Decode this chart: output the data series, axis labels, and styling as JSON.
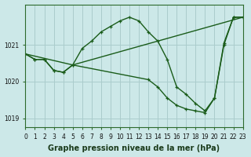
{
  "line1_x": [
    0,
    1,
    2,
    3,
    4,
    5,
    6,
    7,
    8,
    9,
    10,
    11,
    12,
    13,
    14,
    15,
    16,
    17,
    18,
    19,
    20,
    21,
    22,
    23
  ],
  "line1_y": [
    1020.75,
    1020.6,
    1020.6,
    1020.3,
    1020.25,
    1020.45,
    1020.9,
    1021.1,
    1021.35,
    1021.5,
    1021.65,
    1021.75,
    1021.65,
    1021.35,
    1021.1,
    1020.6,
    1019.85,
    1019.65,
    1019.4,
    1019.2,
    1019.55,
    1021.05,
    1021.75,
    1021.75
  ],
  "line1_markers": [
    0,
    1,
    2,
    3,
    4,
    5,
    6,
    7,
    8,
    9,
    10,
    11,
    12,
    13,
    14,
    15,
    16,
    17,
    18,
    19,
    20,
    21,
    22,
    23
  ],
  "line2_x": [
    0,
    5,
    23
  ],
  "line2_y": [
    1020.75,
    1020.45,
    1021.75
  ],
  "line3_x": [
    0,
    1,
    2,
    3,
    4,
    5,
    13,
    14,
    15,
    16,
    17,
    18,
    19,
    20,
    21,
    22,
    23
  ],
  "line3_y": [
    1020.75,
    1020.6,
    1020.6,
    1020.3,
    1020.25,
    1020.45,
    1020.05,
    1019.85,
    1019.55,
    1019.35,
    1019.25,
    1019.2,
    1019.15,
    1019.55,
    1021.0,
    1021.75,
    1021.75
  ],
  "xlim": [
    0,
    23
  ],
  "ylim": [
    1018.75,
    1022.1
  ],
  "yticks": [
    1019,
    1020,
    1021
  ],
  "xticks": [
    0,
    1,
    2,
    3,
    4,
    5,
    6,
    7,
    8,
    9,
    10,
    11,
    12,
    13,
    14,
    15,
    16,
    17,
    18,
    19,
    20,
    21,
    22,
    23
  ],
  "xlabel": "Graphe pression niveau de la mer (hPa)",
  "bg_color": "#cce8e8",
  "grid_color": "#aacccc",
  "line_color": "#1a5c1a",
  "tick_fontsize": 5.5,
  "xlabel_fontsize": 7.0
}
